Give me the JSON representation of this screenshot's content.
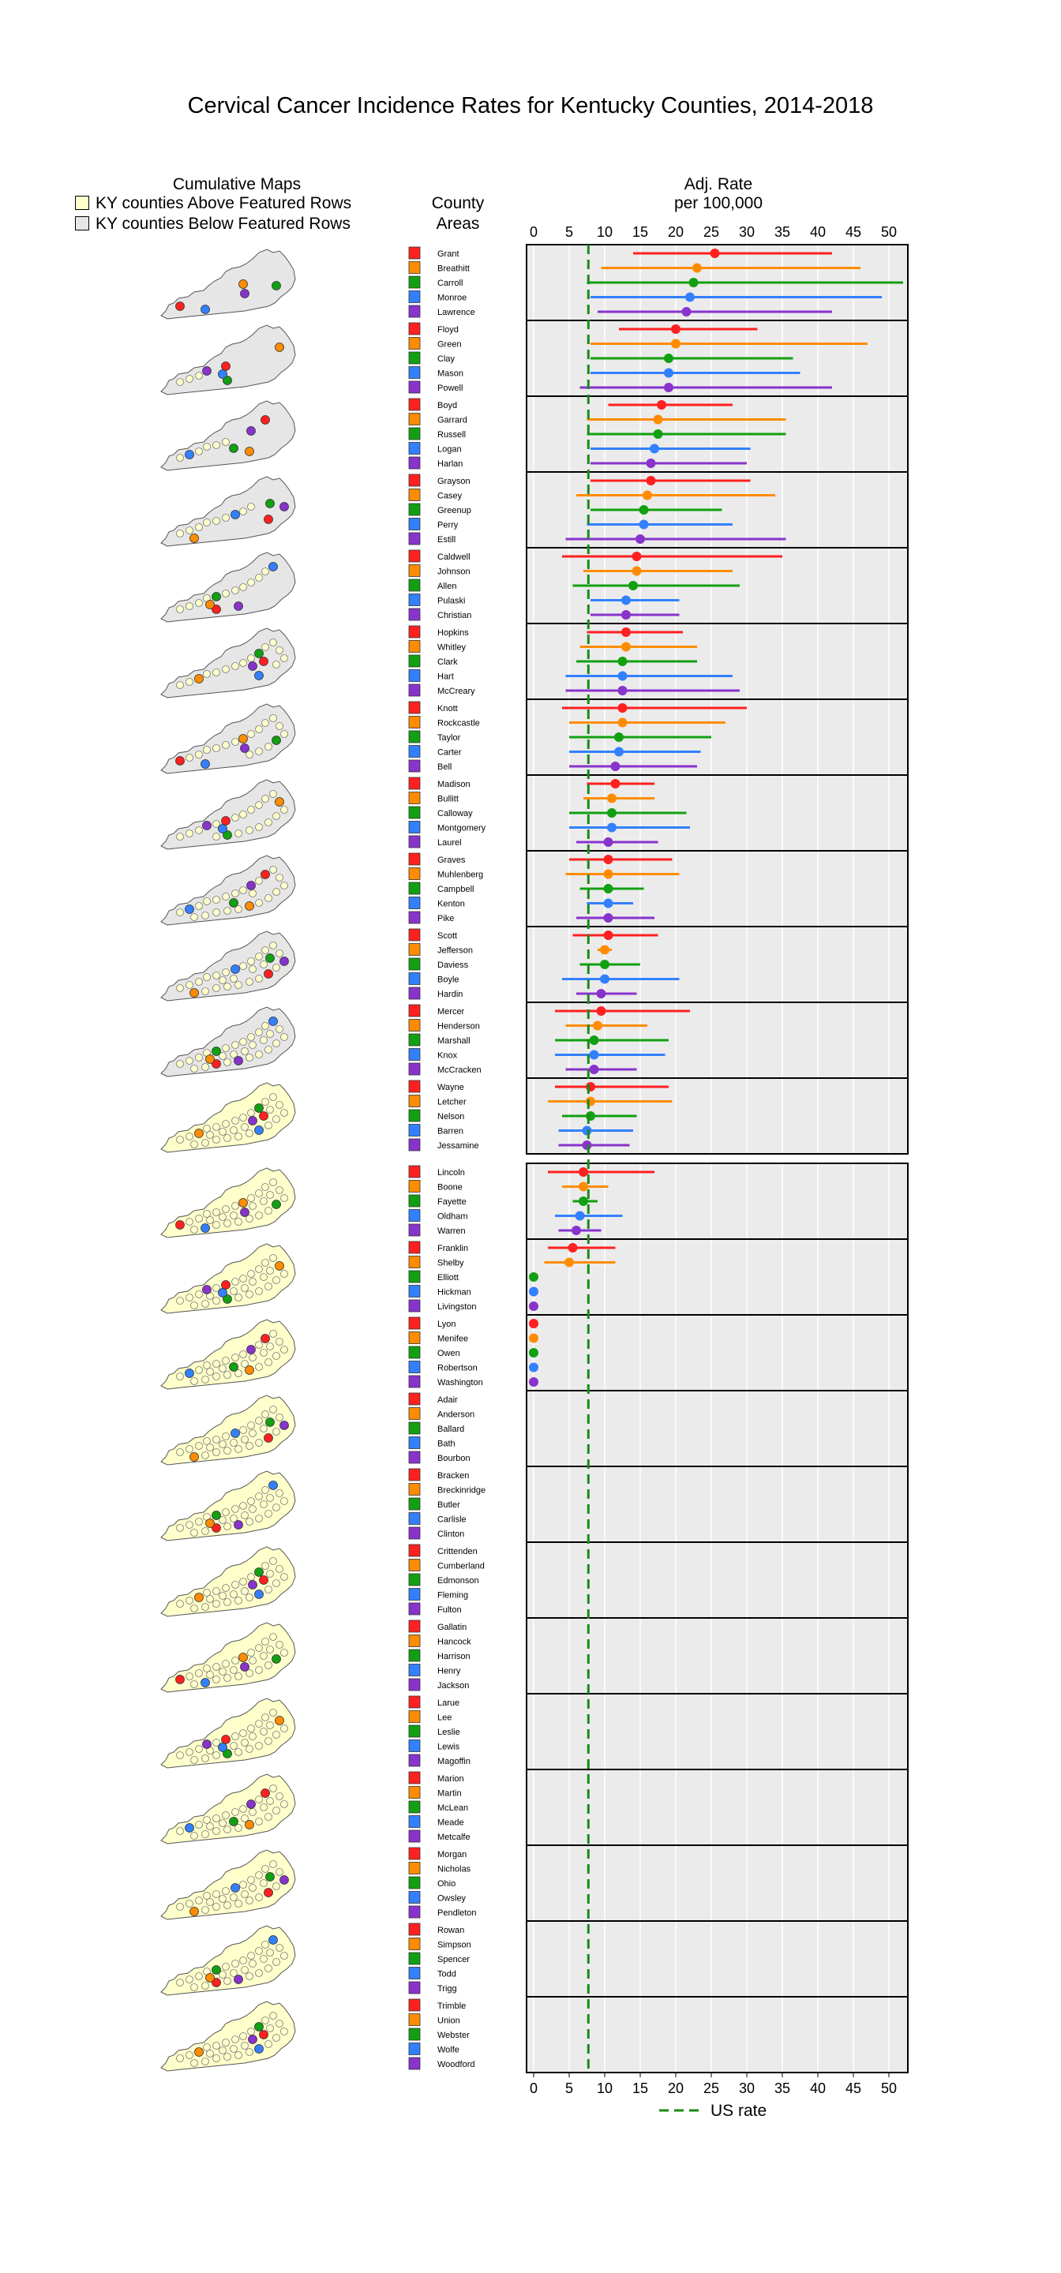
{
  "title": "Cervical Cancer Incidence Rates for Kentucky Counties, 2014-2018",
  "headers": {
    "maps": "Cumulative Maps",
    "county_line1": "County",
    "county_line2": "Areas",
    "rate_line1": "Adj. Rate",
    "rate_line2": "per 100,000"
  },
  "legend": {
    "above": "KY counties Above Featured Rows",
    "below": "KY counties Below Featured Rows",
    "above_color": "#FFFFCC",
    "below_color": "#E6E6E6"
  },
  "us_rate_label": "US rate",
  "colors": [
    "#FF2020",
    "#FF8C00",
    "#11A011",
    "#3380FF",
    "#8833CC"
  ],
  "chart_data": {
    "type": "dot-interval",
    "title": "Cervical Cancer Incidence Rates for Kentucky Counties, 2014-2018",
    "x_label": "Adj. Rate per 100,000",
    "x_range": [
      0,
      52
    ],
    "x_ticks": [
      0,
      5,
      10,
      15,
      20,
      25,
      30,
      35,
      40,
      45,
      50
    ],
    "us_rate": 7.7,
    "groups": [
      {
        "counties": [
          {
            "name": "Grant",
            "rate": 25.5,
            "lo": 14,
            "hi": 42
          },
          {
            "name": "Breathitt",
            "rate": 23,
            "lo": 9.5,
            "hi": 46
          },
          {
            "name": "Carroll",
            "rate": 22.5,
            "lo": 7.5,
            "hi": 52
          },
          {
            "name": "Monroe",
            "rate": 22,
            "lo": 8,
            "hi": 49
          },
          {
            "name": "Lawrence",
            "rate": 21.5,
            "lo": 9,
            "hi": 42
          }
        ]
      },
      {
        "counties": [
          {
            "name": "Floyd",
            "rate": 20,
            "lo": 12,
            "hi": 31.5
          },
          {
            "name": "Green",
            "rate": 20,
            "lo": 8,
            "hi": 47
          },
          {
            "name": "Clay",
            "rate": 19,
            "lo": 8,
            "hi": 36.5
          },
          {
            "name": "Mason",
            "rate": 19,
            "lo": 8,
            "hi": 37.5
          },
          {
            "name": "Powell",
            "rate": 19,
            "lo": 6.5,
            "hi": 42
          }
        ]
      },
      {
        "counties": [
          {
            "name": "Boyd",
            "rate": 18,
            "lo": 10.5,
            "hi": 28
          },
          {
            "name": "Garrard",
            "rate": 17.5,
            "lo": 7.5,
            "hi": 35.5
          },
          {
            "name": "Russell",
            "rate": 17.5,
            "lo": 7.5,
            "hi": 35.5
          },
          {
            "name": "Logan",
            "rate": 17,
            "lo": 8,
            "hi": 30.5
          },
          {
            "name": "Harlan",
            "rate": 16.5,
            "lo": 8,
            "hi": 30
          }
        ]
      },
      {
        "counties": [
          {
            "name": "Grayson",
            "rate": 16.5,
            "lo": 8,
            "hi": 30.5
          },
          {
            "name": "Casey",
            "rate": 16,
            "lo": 6,
            "hi": 34
          },
          {
            "name": "Greenup",
            "rate": 15.5,
            "lo": 8,
            "hi": 26.5
          },
          {
            "name": "Perry",
            "rate": 15.5,
            "lo": 7.5,
            "hi": 28
          },
          {
            "name": "Estill",
            "rate": 15,
            "lo": 4.5,
            "hi": 35.5
          }
        ]
      },
      {
        "counties": [
          {
            "name": "Caldwell",
            "rate": 14.5,
            "lo": 4,
            "hi": 35
          },
          {
            "name": "Johnson",
            "rate": 14.5,
            "lo": 7,
            "hi": 28
          },
          {
            "name": "Allen",
            "rate": 14,
            "lo": 5.5,
            "hi": 29
          },
          {
            "name": "Pulaski",
            "rate": 13,
            "lo": 8,
            "hi": 20.5
          },
          {
            "name": "Christian",
            "rate": 13,
            "lo": 8,
            "hi": 20.5
          }
        ]
      },
      {
        "counties": [
          {
            "name": "Hopkins",
            "rate": 13,
            "lo": 7.5,
            "hi": 21
          },
          {
            "name": "Whitley",
            "rate": 13,
            "lo": 6.5,
            "hi": 23
          },
          {
            "name": "Clark",
            "rate": 12.5,
            "lo": 6,
            "hi": 23
          },
          {
            "name": "Hart",
            "rate": 12.5,
            "lo": 4.5,
            "hi": 28
          },
          {
            "name": "McCreary",
            "rate": 12.5,
            "lo": 4.5,
            "hi": 29
          }
        ]
      },
      {
        "counties": [
          {
            "name": "Knott",
            "rate": 12.5,
            "lo": 4,
            "hi": 30
          },
          {
            "name": "Rockcastle",
            "rate": 12.5,
            "lo": 5,
            "hi": 27
          },
          {
            "name": "Taylor",
            "rate": 12,
            "lo": 5,
            "hi": 25
          },
          {
            "name": "Carter",
            "rate": 12,
            "lo": 5,
            "hi": 23.5
          },
          {
            "name": "Bell",
            "rate": 11.5,
            "lo": 5,
            "hi": 23
          }
        ]
      },
      {
        "counties": [
          {
            "name": "Madison",
            "rate": 11.5,
            "lo": 7.5,
            "hi": 17
          },
          {
            "name": "Bullitt",
            "rate": 11,
            "lo": 7,
            "hi": 17
          },
          {
            "name": "Calloway",
            "rate": 11,
            "lo": 5,
            "hi": 21.5
          },
          {
            "name": "Montgomery",
            "rate": 11,
            "lo": 5,
            "hi": 22
          },
          {
            "name": "Laurel",
            "rate": 10.5,
            "lo": 6,
            "hi": 17.5
          }
        ]
      },
      {
        "counties": [
          {
            "name": "Graves",
            "rate": 10.5,
            "lo": 5,
            "hi": 19.5
          },
          {
            "name": "Muhlenberg",
            "rate": 10.5,
            "lo": 4.5,
            "hi": 20.5
          },
          {
            "name": "Campbell",
            "rate": 10.5,
            "lo": 6.5,
            "hi": 15.5
          },
          {
            "name": "Kenton",
            "rate": 10.5,
            "lo": 7.5,
            "hi": 14
          },
          {
            "name": "Pike",
            "rate": 10.5,
            "lo": 6,
            "hi": 17
          }
        ]
      },
      {
        "counties": [
          {
            "name": "Scott",
            "rate": 10.5,
            "lo": 5.5,
            "hi": 17.5
          },
          {
            "name": "Jefferson",
            "rate": 10,
            "lo": 9,
            "hi": 11
          },
          {
            "name": "Daviess",
            "rate": 10,
            "lo": 6.5,
            "hi": 15
          },
          {
            "name": "Boyle",
            "rate": 10,
            "lo": 4,
            "hi": 20.5
          },
          {
            "name": "Hardin",
            "rate": 9.5,
            "lo": 6,
            "hi": 14.5
          }
        ]
      },
      {
        "counties": [
          {
            "name": "Mercer",
            "rate": 9.5,
            "lo": 3,
            "hi": 22
          },
          {
            "name": "Henderson",
            "rate": 9,
            "lo": 4.5,
            "hi": 16
          },
          {
            "name": "Marshall",
            "rate": 8.5,
            "lo": 3,
            "hi": 19
          },
          {
            "name": "Knox",
            "rate": 8.5,
            "lo": 3,
            "hi": 18.5
          },
          {
            "name": "McCracken",
            "rate": 8.5,
            "lo": 4.5,
            "hi": 14.5
          }
        ]
      },
      {
        "counties": [
          {
            "name": "Wayne",
            "rate": 8,
            "lo": 3,
            "hi": 19
          },
          {
            "name": "Letcher",
            "rate": 8,
            "lo": 2,
            "hi": 19.5
          },
          {
            "name": "Nelson",
            "rate": 8,
            "lo": 4,
            "hi": 14.5
          },
          {
            "name": "Barren",
            "rate": 7.5,
            "lo": 3.5,
            "hi": 14
          },
          {
            "name": "Jessamine",
            "rate": 7.5,
            "lo": 3.5,
            "hi": 13.5
          }
        ]
      },
      {
        "counties": [
          {
            "name": "Lincoln",
            "rate": 7,
            "lo": 2,
            "hi": 17
          },
          {
            "name": "Boone",
            "rate": 7,
            "lo": 4,
            "hi": 10.5
          },
          {
            "name": "Fayette",
            "rate": 7,
            "lo": 5.5,
            "hi": 9
          },
          {
            "name": "Oldham",
            "rate": 6.5,
            "lo": 3,
            "hi": 12.5
          },
          {
            "name": "Warren",
            "rate": 6,
            "lo": 3.5,
            "hi": 9.5
          }
        ]
      },
      {
        "counties": [
          {
            "name": "Franklin",
            "rate": 5.5,
            "lo": 2,
            "hi": 11.5
          },
          {
            "name": "Shelby",
            "rate": 5,
            "lo": 1.5,
            "hi": 11.5
          },
          {
            "name": "Elliott",
            "rate": 0
          },
          {
            "name": "Hickman",
            "rate": 0
          },
          {
            "name": "Livingston",
            "rate": 0
          }
        ]
      },
      {
        "counties": [
          {
            "name": "Lyon",
            "rate": 0
          },
          {
            "name": "Menifee",
            "rate": 0
          },
          {
            "name": "Owen",
            "rate": 0
          },
          {
            "name": "Robertson",
            "rate": 0
          },
          {
            "name": "Washington",
            "rate": 0
          }
        ]
      },
      {
        "counties": [
          {
            "name": "Adair"
          },
          {
            "name": "Anderson"
          },
          {
            "name": "Ballard"
          },
          {
            "name": "Bath"
          },
          {
            "name": "Bourbon"
          }
        ]
      },
      {
        "counties": [
          {
            "name": "Bracken"
          },
          {
            "name": "Breckinridge"
          },
          {
            "name": "Butler"
          },
          {
            "name": "Carlisle"
          },
          {
            "name": "Clinton"
          }
        ]
      },
      {
        "counties": [
          {
            "name": "Crittenden"
          },
          {
            "name": "Cumberland"
          },
          {
            "name": "Edmonson"
          },
          {
            "name": "Fleming"
          },
          {
            "name": "Fulton"
          }
        ]
      },
      {
        "counties": [
          {
            "name": "Gallatin"
          },
          {
            "name": "Hancock"
          },
          {
            "name": "Harrison"
          },
          {
            "name": "Henry"
          },
          {
            "name": "Jackson"
          }
        ]
      },
      {
        "counties": [
          {
            "name": "Larue"
          },
          {
            "name": "Lee"
          },
          {
            "name": "Leslie"
          },
          {
            "name": "Lewis"
          },
          {
            "name": "Magoffin"
          }
        ]
      },
      {
        "counties": [
          {
            "name": "Marion"
          },
          {
            "name": "Martin"
          },
          {
            "name": "McLean"
          },
          {
            "name": "Meade"
          },
          {
            "name": "Metcalfe"
          }
        ]
      },
      {
        "counties": [
          {
            "name": "Morgan"
          },
          {
            "name": "Nicholas"
          },
          {
            "name": "Ohio"
          },
          {
            "name": "Owsley"
          },
          {
            "name": "Pendleton"
          }
        ]
      },
      {
        "counties": [
          {
            "name": "Rowan"
          },
          {
            "name": "Simpson"
          },
          {
            "name": "Spencer"
          },
          {
            "name": "Todd"
          },
          {
            "name": "Trigg"
          }
        ]
      },
      {
        "counties": [
          {
            "name": "Trimble"
          },
          {
            "name": "Union"
          },
          {
            "name": "Webster"
          },
          {
            "name": "Wolfe"
          },
          {
            "name": "Woodford"
          }
        ]
      }
    ]
  }
}
